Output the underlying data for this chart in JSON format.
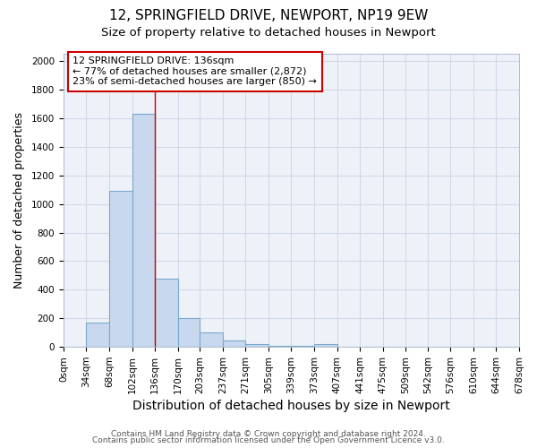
{
  "title1": "12, SPRINGFIELD DRIVE, NEWPORT, NP19 9EW",
  "title2": "Size of property relative to detached houses in Newport",
  "xlabel": "Distribution of detached houses by size in Newport",
  "ylabel": "Number of detached properties",
  "bin_labels": [
    "0sqm",
    "34sqm",
    "68sqm",
    "102sqm",
    "136sqm",
    "170sqm",
    "203sqm",
    "237sqm",
    "271sqm",
    "305sqm",
    "339sqm",
    "373sqm",
    "407sqm",
    "441sqm",
    "475sqm",
    "509sqm",
    "542sqm",
    "576sqm",
    "610sqm",
    "644sqm",
    "678sqm"
  ],
  "bin_edges": [
    0,
    34,
    68,
    102,
    136,
    170,
    203,
    237,
    271,
    305,
    339,
    373,
    407,
    441,
    475,
    509,
    542,
    576,
    610,
    644,
    678
  ],
  "bar_heights": [
    0,
    170,
    1090,
    1630,
    480,
    200,
    100,
    45,
    20,
    10,
    10,
    20,
    0,
    0,
    0,
    0,
    0,
    0,
    0,
    0
  ],
  "bar_color": "#c8d8ee",
  "bar_edgecolor": "#7aaad0",
  "vline_x": 136,
  "vline_color": "#cc0000",
  "ylim": [
    0,
    2050
  ],
  "yticks": [
    0,
    200,
    400,
    600,
    800,
    1000,
    1200,
    1400,
    1600,
    1800,
    2000
  ],
  "annotation_text": "12 SPRINGFIELD DRIVE: 136sqm\n← 77% of detached houses are smaller (2,872)\n23% of semi-detached houses are larger (850) →",
  "annotation_box_facecolor": "#ffffff",
  "annotation_box_edgecolor": "#cc0000",
  "footer1": "Contains HM Land Registry data © Crown copyright and database right 2024.",
  "footer2": "Contains public sector information licensed under the Open Government Licence v3.0.",
  "background_color": "#ffffff",
  "plot_bg_color": "#eef2f8",
  "grid_color": "#d0d8e8",
  "title1_fontsize": 11,
  "title2_fontsize": 9.5,
  "xlabel_fontsize": 10,
  "ylabel_fontsize": 9,
  "tick_fontsize": 7.5,
  "annotation_fontsize": 8,
  "footer_fontsize": 6.5
}
